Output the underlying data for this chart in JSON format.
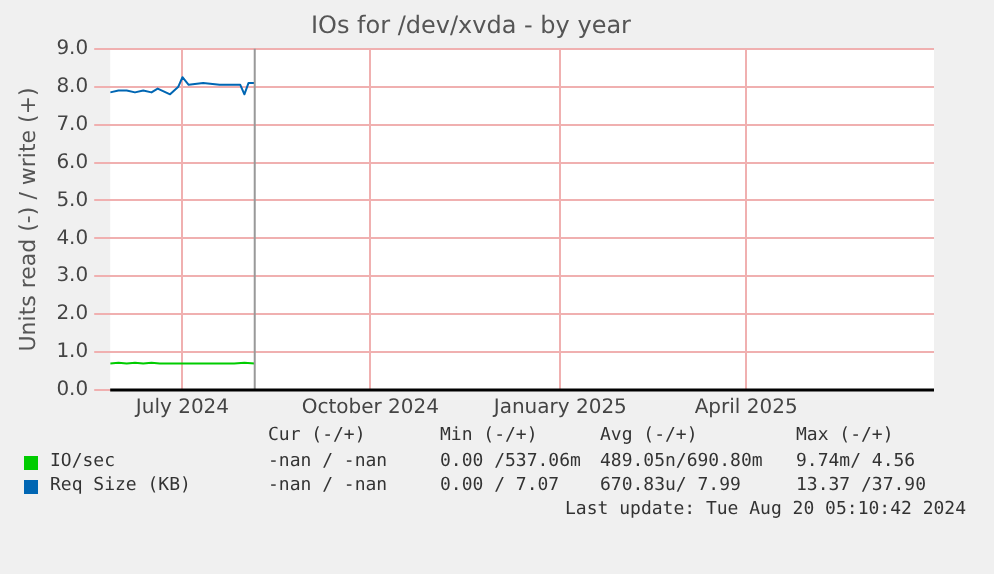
{
  "chart_data": {
    "type": "line",
    "title": "IOs for /dev/xvda - by year",
    "ylabel": "Units read (-) / write (+)",
    "xlim": [
      "2024-06-11",
      "2025-07-15"
    ],
    "xticks": [
      {
        "value": "2024-07-16",
        "label": "July 2024"
      },
      {
        "value": "2024-10-15",
        "label": "October 2024"
      },
      {
        "value": "2025-01-15",
        "label": "January 2025"
      },
      {
        "value": "2025-04-15",
        "label": "April 2025"
      }
    ],
    "ylim": [
      0,
      9
    ],
    "yticks": [
      {
        "value": 0,
        "label": "0.0"
      },
      {
        "value": 1,
        "label": "1.0"
      },
      {
        "value": 2,
        "label": "2.0"
      },
      {
        "value": 3,
        "label": "3.0"
      },
      {
        "value": 4,
        "label": "4.0"
      },
      {
        "value": 5,
        "label": "5.0"
      },
      {
        "value": 6,
        "label": "6.0"
      },
      {
        "value": 7,
        "label": "7.0"
      },
      {
        "value": 8,
        "label": "8.0"
      },
      {
        "value": 9,
        "label": "9.0"
      }
    ],
    "grid": true,
    "legend": "bottom",
    "marker": "none",
    "line_style": "solid",
    "series": [
      {
        "name": "IO/sec",
        "color": "#00cc00",
        "x": [
          "2024-06-11",
          "2024-06-15",
          "2024-06-19",
          "2024-06-23",
          "2024-06-27",
          "2024-07-01",
          "2024-07-05",
          "2024-07-10",
          "2024-07-16",
          "2024-07-24",
          "2024-08-01",
          "2024-08-10",
          "2024-08-15",
          "2024-08-20"
        ],
        "values": [
          0.7,
          0.72,
          0.7,
          0.72,
          0.7,
          0.72,
          0.7,
          0.7,
          0.7,
          0.7,
          0.7,
          0.7,
          0.72,
          0.7
        ]
      },
      {
        "name": "Req Size (KB)",
        "color": "#0066b3",
        "x": [
          "2024-06-11",
          "2024-06-15",
          "2024-06-19",
          "2024-06-23",
          "2024-06-27",
          "2024-07-01",
          "2024-07-04",
          "2024-07-10",
          "2024-07-14",
          "2024-07-16",
          "2024-07-19",
          "2024-07-26",
          "2024-08-03",
          "2024-08-13",
          "2024-08-15",
          "2024-08-17",
          "2024-08-20"
        ],
        "values": [
          7.85,
          7.9,
          7.9,
          7.85,
          7.9,
          7.85,
          7.95,
          7.8,
          8.0,
          8.25,
          8.05,
          8.1,
          8.05,
          8.05,
          7.8,
          8.1,
          8.1
        ]
      }
    ],
    "ref_lines": [
      {
        "axis": "x",
        "value": "2024-08-20",
        "color": "#999999"
      }
    ],
    "annotations": [
      "Cur (-/+)",
      "Min (-/+)",
      "Avg (-/+)",
      "Max (-/+)",
      "-nan / -nan",
      "0.00 /537.06m",
      "489.05n/690.80m",
      "9.74m/ 4.56",
      "-nan / -nan",
      "0.00 / 7.07",
      "670.83u/ 7.99",
      "13.37 /37.90",
      "Last update: Tue Aug 20 05:10:42 2024"
    ]
  }
}
